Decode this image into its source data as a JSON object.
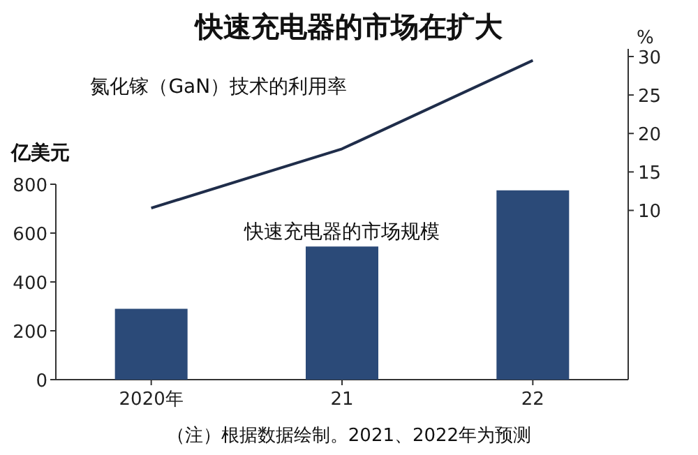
{
  "chart_data": {
    "type": "bar",
    "title": "快速充电器的市场在扩大",
    "ylabel": "亿美元",
    "y2label": "%",
    "categories": [
      "2020年",
      "21",
      "22"
    ],
    "series": [
      {
        "name": "快速充电器的市场规模",
        "color": "#2b4a78",
        "values": [
          290,
          545,
          775
        ]
      },
      {
        "name": "氮化镓（GaN）技术的利用率",
        "type": "line",
        "axis": "y2",
        "color": "#1f2d4a",
        "values": [
          10.3,
          18,
          29.5
        ]
      }
    ],
    "ylim": [
      0,
      800
    ],
    "yticks": [
      0,
      200,
      400,
      600,
      800
    ],
    "y2lim": [
      -12,
      31
    ],
    "y2ticks": [
      10,
      15,
      20,
      25,
      30
    ],
    "annotations": [
      "（注）根据数据绘制。2021、2022年为预测"
    ]
  }
}
